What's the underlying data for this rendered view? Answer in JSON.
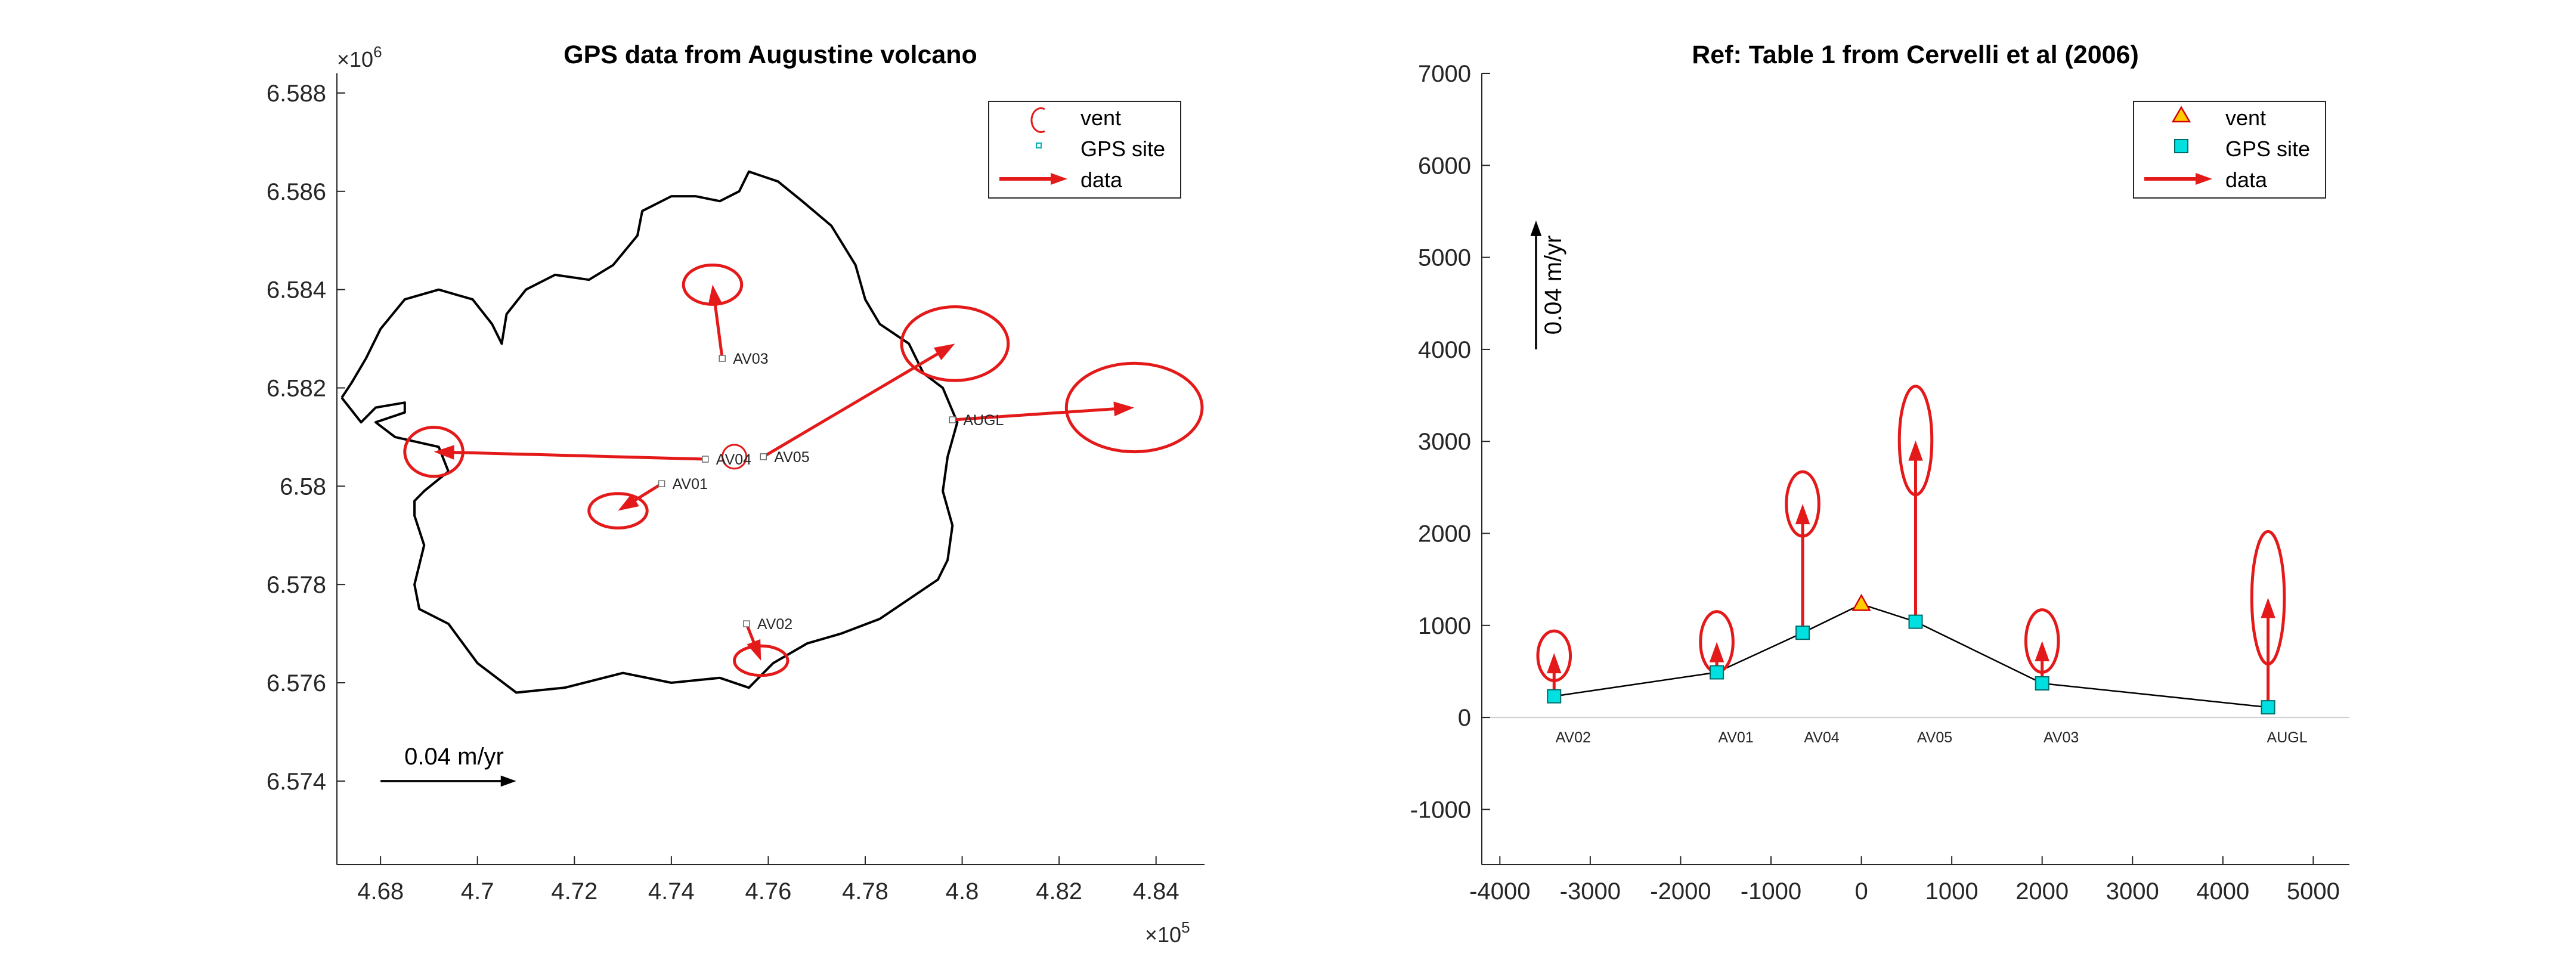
{
  "chart_data": [
    {
      "type": "scatter",
      "title": "GPS data from Augustine volcano",
      "xlabel": "",
      "ylabel": "",
      "xlim": [
        467100,
        485000
      ],
      "ylim": [
        6572300,
        6588400
      ],
      "x_ticks": [
        468000,
        470000,
        472000,
        474000,
        476000,
        478000,
        480000,
        482000,
        484000
      ],
      "y_ticks": [
        6574000,
        6576000,
        6578000,
        6580000,
        6582000,
        6584000,
        6586000,
        6588000
      ],
      "x_tick_labels": [
        "4.68",
        "4.7",
        "4.72",
        "4.74",
        "4.76",
        "4.78",
        "4.8",
        "4.82",
        "4.84"
      ],
      "y_tick_labels": [
        "6.574",
        "6.576",
        "6.578",
        "6.58",
        "6.582",
        "6.584",
        "6.586",
        "6.588"
      ],
      "x_exponent_label": "×10",
      "x_exponent": "5",
      "y_exponent_label": "×10",
      "y_exponent": "6",
      "legend": {
        "location": "top-right",
        "entries": [
          {
            "label": "vent",
            "marker": "circle",
            "color": "#e41a1a"
          },
          {
            "label": "GPS site",
            "marker": "square",
            "color": "#00b0b0"
          },
          {
            "label": "data",
            "marker": "arrow",
            "color": "#e41a1a"
          }
        ]
      },
      "vent": {
        "x": 475300,
        "y": 6580600
      },
      "sites": [
        {
          "name": "AV01",
          "x": 473800,
          "y": 6580050,
          "dx": -900,
          "dy": -550
        },
        {
          "name": "AV02",
          "x": 475550,
          "y": 6577200,
          "dx": 300,
          "dy": -750
        },
        {
          "name": "AV03",
          "x": 475050,
          "y": 6582600,
          "dx": -200,
          "dy": 1500
        },
        {
          "name": "AV04",
          "x": 474700,
          "y": 6580550,
          "dx": -5600,
          "dy": 150
        },
        {
          "name": "AV05",
          "x": 475900,
          "y": 6580600,
          "dx": 3950,
          "dy": 2300
        },
        {
          "name": "AUGL",
          "x": 479800,
          "y": 6581350,
          "dx": 3750,
          "dy": 250
        }
      ],
      "error_ellipses": [
        {
          "site": "AV01",
          "rx": 600,
          "ry": 350
        },
        {
          "site": "AV02",
          "rx": 550,
          "ry": 300
        },
        {
          "site": "AV03",
          "rx": 600,
          "ry": 400
        },
        {
          "site": "AV04",
          "rx": 600,
          "ry": 500
        },
        {
          "site": "AV05",
          "rx": 1100,
          "ry": 750
        },
        {
          "site": "AUGL",
          "rx": 1400,
          "ry": 900
        }
      ],
      "coastline": [
        [
          467200,
          6581800
        ],
        [
          467600,
          6581300
        ],
        [
          467900,
          6581600
        ],
        [
          468500,
          6581700
        ],
        [
          468500,
          6581500
        ],
        [
          467900,
          6581300
        ],
        [
          468300,
          6581000
        ],
        [
          469200,
          6580800
        ],
        [
          469400,
          6580300
        ],
        [
          468900,
          6579900
        ],
        [
          468700,
          6579700
        ],
        [
          468700,
          6579400
        ],
        [
          468900,
          6578800
        ],
        [
          468700,
          6578000
        ],
        [
          468800,
          6577500
        ],
        [
          469400,
          6577200
        ],
        [
          470000,
          6576400
        ],
        [
          470800,
          6575800
        ],
        [
          471800,
          6575900
        ],
        [
          473000,
          6576200
        ],
        [
          474000,
          6576000
        ],
        [
          475000,
          6576100
        ],
        [
          475600,
          6575900
        ],
        [
          476100,
          6576400
        ],
        [
          476800,
          6576800
        ],
        [
          477500,
          6577000
        ],
        [
          478300,
          6577300
        ],
        [
          478900,
          6577700
        ],
        [
          479500,
          6578100
        ],
        [
          479700,
          6578500
        ],
        [
          479800,
          6579200
        ],
        [
          479600,
          6579900
        ],
        [
          479700,
          6580600
        ],
        [
          479900,
          6581300
        ],
        [
          479600,
          6582000
        ],
        [
          479200,
          6582300
        ],
        [
          478900,
          6582900
        ],
        [
          478300,
          6583300
        ],
        [
          478000,
          6583800
        ],
        [
          477800,
          6584500
        ],
        [
          477300,
          6585300
        ],
        [
          476700,
          6585800
        ],
        [
          476200,
          6586200
        ],
        [
          475600,
          6586400
        ],
        [
          475400,
          6586000
        ],
        [
          475000,
          6585800
        ],
        [
          474500,
          6585900
        ],
        [
          474000,
          6585900
        ],
        [
          473400,
          6585600
        ],
        [
          473300,
          6585100
        ],
        [
          472800,
          6584500
        ],
        [
          472300,
          6584200
        ],
        [
          471600,
          6584300
        ],
        [
          471000,
          6584000
        ],
        [
          470600,
          6583500
        ],
        [
          470500,
          6582900
        ],
        [
          470300,
          6583300
        ],
        [
          469900,
          6583800
        ],
        [
          469200,
          6584000
        ],
        [
          468500,
          6583800
        ],
        [
          468000,
          6583200
        ],
        [
          467700,
          6582600
        ],
        [
          467400,
          6582100
        ],
        [
          467200,
          6581800
        ]
      ],
      "scale_arrow": {
        "label": "0.04 m/yr",
        "x": 468000,
        "y": 6574000,
        "dx": 2800
      }
    },
    {
      "type": "scatter",
      "title": "Ref: Table 1 from Cervelli et al (2006)",
      "xlabel": "",
      "ylabel": "",
      "xlim": [
        -4200,
        5400
      ],
      "ylim": [
        -1600,
        7000
      ],
      "x_ticks": [
        -4000,
        -3000,
        -2000,
        -1000,
        0,
        1000,
        2000,
        3000,
        4000,
        5000
      ],
      "y_ticks": [
        -1000,
        0,
        1000,
        2000,
        3000,
        4000,
        5000,
        6000,
        7000
      ],
      "x_tick_labels": [
        "-4000",
        "-3000",
        "-2000",
        "-1000",
        "0",
        "1000",
        "2000",
        "3000",
        "4000",
        "5000"
      ],
      "y_tick_labels": [
        "-1000",
        "0",
        "1000",
        "2000",
        "3000",
        "4000",
        "5000",
        "6000",
        "7000"
      ],
      "legend": {
        "location": "top-right",
        "entries": [
          {
            "label": "vent",
            "marker": "triangle",
            "color": "#ffcc00"
          },
          {
            "label": "GPS site",
            "marker": "square",
            "color": "#00e0e0"
          },
          {
            "label": "data",
            "marker": "arrow",
            "color": "#e41a1a"
          }
        ]
      },
      "vent": {
        "x": 0,
        "y": 1230
      },
      "profile_line": [
        [
          -3400,
          230
        ],
        [
          -1600,
          490
        ],
        [
          -650,
          920
        ],
        [
          0,
          1230
        ],
        [
          600,
          1040
        ],
        [
          2000,
          370
        ],
        [
          4500,
          110
        ]
      ],
      "sites": [
        {
          "name": "AV02",
          "x": -3400,
          "y": 230,
          "dy": 470,
          "ell_cy": 670,
          "ell_ry": 270
        },
        {
          "name": "AV01",
          "x": -1600,
          "y": 490,
          "dy": 330,
          "ell_cy": 820,
          "ell_ry": 330
        },
        {
          "name": "AV04",
          "x": -650,
          "y": 920,
          "dy": 1400,
          "ell_cy": 2320,
          "ell_ry": 350
        },
        {
          "name": "AV05",
          "x": 600,
          "y": 1040,
          "dy": 1970,
          "ell_cy": 3010,
          "ell_ry": 590
        },
        {
          "name": "AV03",
          "x": 2000,
          "y": 370,
          "dy": 460,
          "ell_cy": 830,
          "ell_ry": 340
        },
        {
          "name": "AUGL",
          "x": 4500,
          "y": 110,
          "dy": 1190,
          "ell_cy": 1300,
          "ell_ry": 720
        }
      ],
      "ellipse_rx": 180,
      "scale_arrow": {
        "label": "0.04 m/yr",
        "x": -3600,
        "y": 4000,
        "dy": 1400
      }
    }
  ]
}
